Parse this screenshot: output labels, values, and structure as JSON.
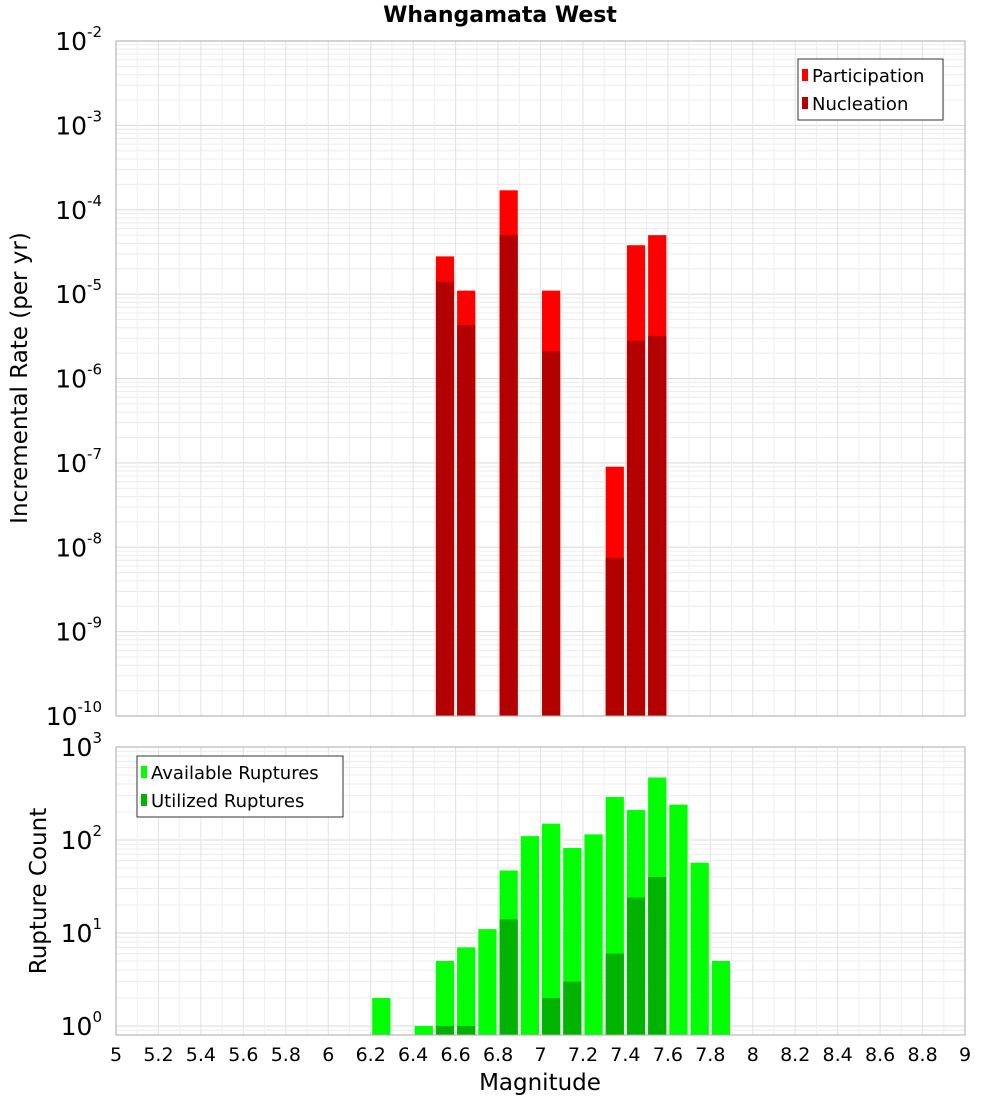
{
  "chart_data": [
    {
      "type": "bar",
      "title": "Whangamata West",
      "xlabel": "",
      "ylabel": "Incremental Rate (per yr)",
      "yscale": "log",
      "xlim": [
        5,
        9
      ],
      "ylim": [
        1e-10,
        0.01
      ],
      "grid": true,
      "legend_position": "top-right",
      "bar_width": 0.1,
      "yticks": [
        {
          "base": "10",
          "exp": "-10"
        },
        {
          "base": "10",
          "exp": "-9"
        },
        {
          "base": "10",
          "exp": "-8"
        },
        {
          "base": "10",
          "exp": "-7"
        },
        {
          "base": "10",
          "exp": "-6"
        },
        {
          "base": "10",
          "exp": "-5"
        },
        {
          "base": "10",
          "exp": "-4"
        },
        {
          "base": "10",
          "exp": "-3"
        },
        {
          "base": "10",
          "exp": "-2"
        }
      ],
      "series": [
        {
          "name": "Participation",
          "color": "#ff0000",
          "x": [
            6.55,
            6.65,
            6.85,
            7.05,
            7.35,
            7.45,
            7.55
          ],
          "values": [
            2.8e-05,
            1.1e-05,
            0.00017,
            1.1e-05,
            9e-08,
            3.8e-05,
            5e-05
          ]
        },
        {
          "name": "Nucleation",
          "color": "#b30000",
          "x": [
            6.55,
            6.65,
            6.85,
            7.05,
            7.35,
            7.45,
            7.55
          ],
          "values": [
            1.4e-05,
            4.3e-06,
            5e-05,
            2.1e-06,
            7.5e-09,
            2.8e-06,
            3.2e-06
          ]
        }
      ]
    },
    {
      "type": "bar",
      "title": "",
      "xlabel": "Magnitude",
      "ylabel": "Rupture Count",
      "yscale": "log",
      "xlim": [
        5,
        9
      ],
      "ylim": [
        0.8,
        1000
      ],
      "grid": true,
      "legend_position": "top-left",
      "bar_width": 0.1,
      "xticks": [
        "5",
        "5.2",
        "5.4",
        "5.6",
        "5.8",
        "6",
        "6.2",
        "6.4",
        "6.6",
        "6.8",
        "7",
        "7.2",
        "7.4",
        "7.6",
        "7.8",
        "8",
        "8.2",
        "8.4",
        "8.6",
        "8.8",
        "9"
      ],
      "yticks": [
        {
          "base": "10",
          "exp": "0"
        },
        {
          "base": "10",
          "exp": "1"
        },
        {
          "base": "10",
          "exp": "2"
        },
        {
          "base": "10",
          "exp": "3"
        }
      ],
      "series": [
        {
          "name": "Available Ruptures",
          "color": "#00ff00",
          "x": [
            6.25,
            6.45,
            6.55,
            6.65,
            6.75,
            6.85,
            6.95,
            7.05,
            7.15,
            7.25,
            7.35,
            7.45,
            7.55,
            7.65,
            7.75,
            7.85
          ],
          "values": [
            2,
            1,
            5,
            7,
            11,
            47,
            110,
            150,
            82,
            115,
            290,
            210,
            470,
            240,
            57,
            5
          ]
        },
        {
          "name": "Utilized Ruptures",
          "color": "#00b300",
          "x": [
            6.55,
            6.65,
            6.85,
            7.05,
            7.15,
            7.35,
            7.45,
            7.55
          ],
          "values": [
            1,
            1,
            14,
            2,
            3,
            6,
            24,
            40
          ]
        }
      ]
    }
  ]
}
